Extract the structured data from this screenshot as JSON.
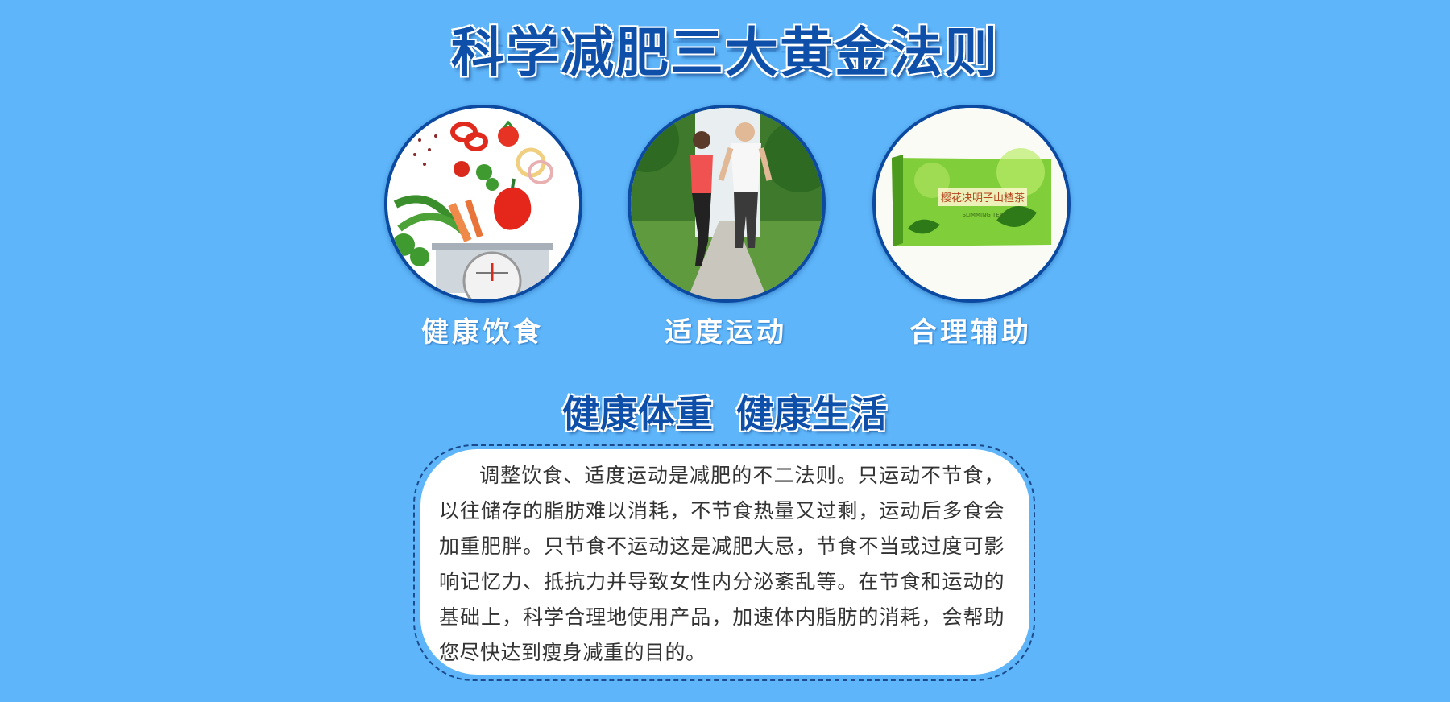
{
  "title": "科学减肥三大黄金法则",
  "methods": [
    {
      "label": "健康饮食",
      "icon": "vegetables-scale-image"
    },
    {
      "label": "适度运动",
      "icon": "jogging-couple-image"
    },
    {
      "label": "合理辅助",
      "icon": "slimming-tea-box-image"
    }
  ],
  "product_box": {
    "name": "樱花决明子山楂茶",
    "sub": "SLIMMING TEA"
  },
  "subtitle": {
    "part1": "健康体重",
    "part2": "健康生活"
  },
  "body": "调整饮食、适度运动是减肥的不二法则。只运动不节食，以往储存的脂肪难以消耗，不节食热量又过剩，运动后多食会加重肥胖。只节食不运动这是减肥大忌，节食不当或过度可影响记忆力、抵抗力并导致女性内分泌紊乱等。在节食和运动的基础上，科学合理地使用产品，加速体内脂肪的消耗，会帮助您尽快达到瘦身减重的目的。",
  "colors": {
    "background": "#5eb5f9",
    "title": "#0d4fa9",
    "circle_border": "#0b4aa0"
  }
}
